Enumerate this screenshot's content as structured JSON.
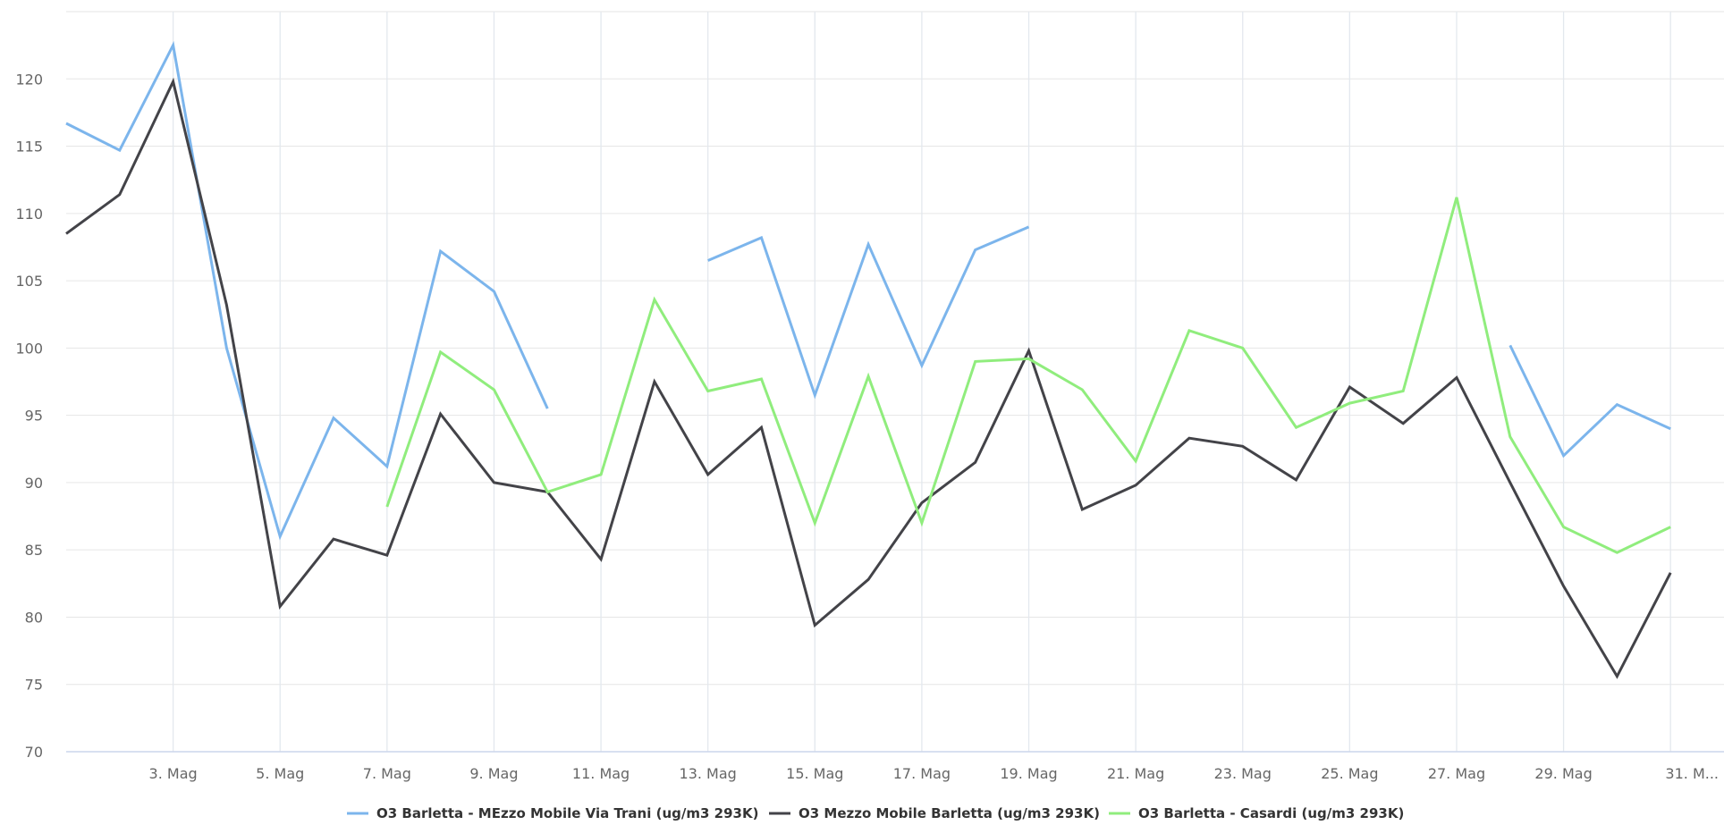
{
  "chart_data": {
    "type": "line",
    "x": [
      1,
      2,
      3,
      4,
      5,
      6,
      7,
      8,
      9,
      10,
      11,
      12,
      13,
      14,
      15,
      16,
      17,
      18,
      19,
      20,
      21,
      22,
      23,
      24,
      25,
      26,
      27,
      28,
      29,
      30,
      31,
      32
    ],
    "xtick_values": [
      3,
      5,
      7,
      9,
      11,
      13,
      15,
      17,
      19,
      21,
      23,
      25,
      27,
      29,
      31
    ],
    "xtick_labels": [
      "3. Mag",
      "5. Mag",
      "7. Mag",
      "9. Mag",
      "11. Mag",
      "13. Mag",
      "15. Mag",
      "17. Mag",
      "19. Mag",
      "21. Mag",
      "23. Mag",
      "25. Mag",
      "27. Mag",
      "29. Mag",
      "31. M..."
    ],
    "xlim": [
      1,
      32
    ],
    "ylim": [
      70,
      125
    ],
    "yticks": [
      70,
      75,
      80,
      85,
      90,
      95,
      100,
      105,
      110,
      115,
      120
    ],
    "grid": true,
    "legend": "bottom-center",
    "series": [
      {
        "name": "O3 Barletta - MEzzo Mobile Via Trani (ug/m3 293K)",
        "color": "#7cb5ec",
        "values": [
          116.7,
          114.7,
          122.5,
          100.0,
          86.0,
          94.8,
          91.2,
          107.2,
          104.2,
          95.5,
          null,
          null,
          106.5,
          108.2,
          96.5,
          107.7,
          98.7,
          107.3,
          109.0,
          null,
          null,
          null,
          null,
          null,
          null,
          null,
          null,
          100.2,
          92.0,
          95.8,
          94.0,
          null
        ]
      },
      {
        "name": "O3 Mezzo Mobile Barletta (ug/m3 293K)",
        "color": "#434348",
        "values": [
          108.5,
          111.4,
          119.8,
          103.2,
          80.8,
          85.8,
          84.6,
          95.1,
          90.0,
          89.3,
          84.3,
          97.5,
          90.6,
          94.1,
          79.4,
          82.8,
          88.5,
          91.5,
          99.8,
          88.0,
          89.8,
          93.3,
          92.7,
          90.2,
          97.1,
          94.4,
          97.8,
          90.0,
          82.3,
          75.6,
          83.3,
          null
        ]
      },
      {
        "name": "O3 Barletta - Casardi (ug/m3 293K)",
        "color": "#90ed7d",
        "values": [
          null,
          null,
          null,
          null,
          null,
          null,
          88.2,
          99.7,
          96.9,
          89.3,
          90.6,
          103.6,
          96.8,
          97.7,
          87.0,
          97.9,
          87.0,
          99.0,
          99.2,
          96.9,
          91.6,
          101.3,
          100.0,
          94.1,
          95.9,
          96.8,
          111.2,
          93.4,
          86.7,
          84.8,
          86.7,
          null
        ]
      }
    ]
  }
}
